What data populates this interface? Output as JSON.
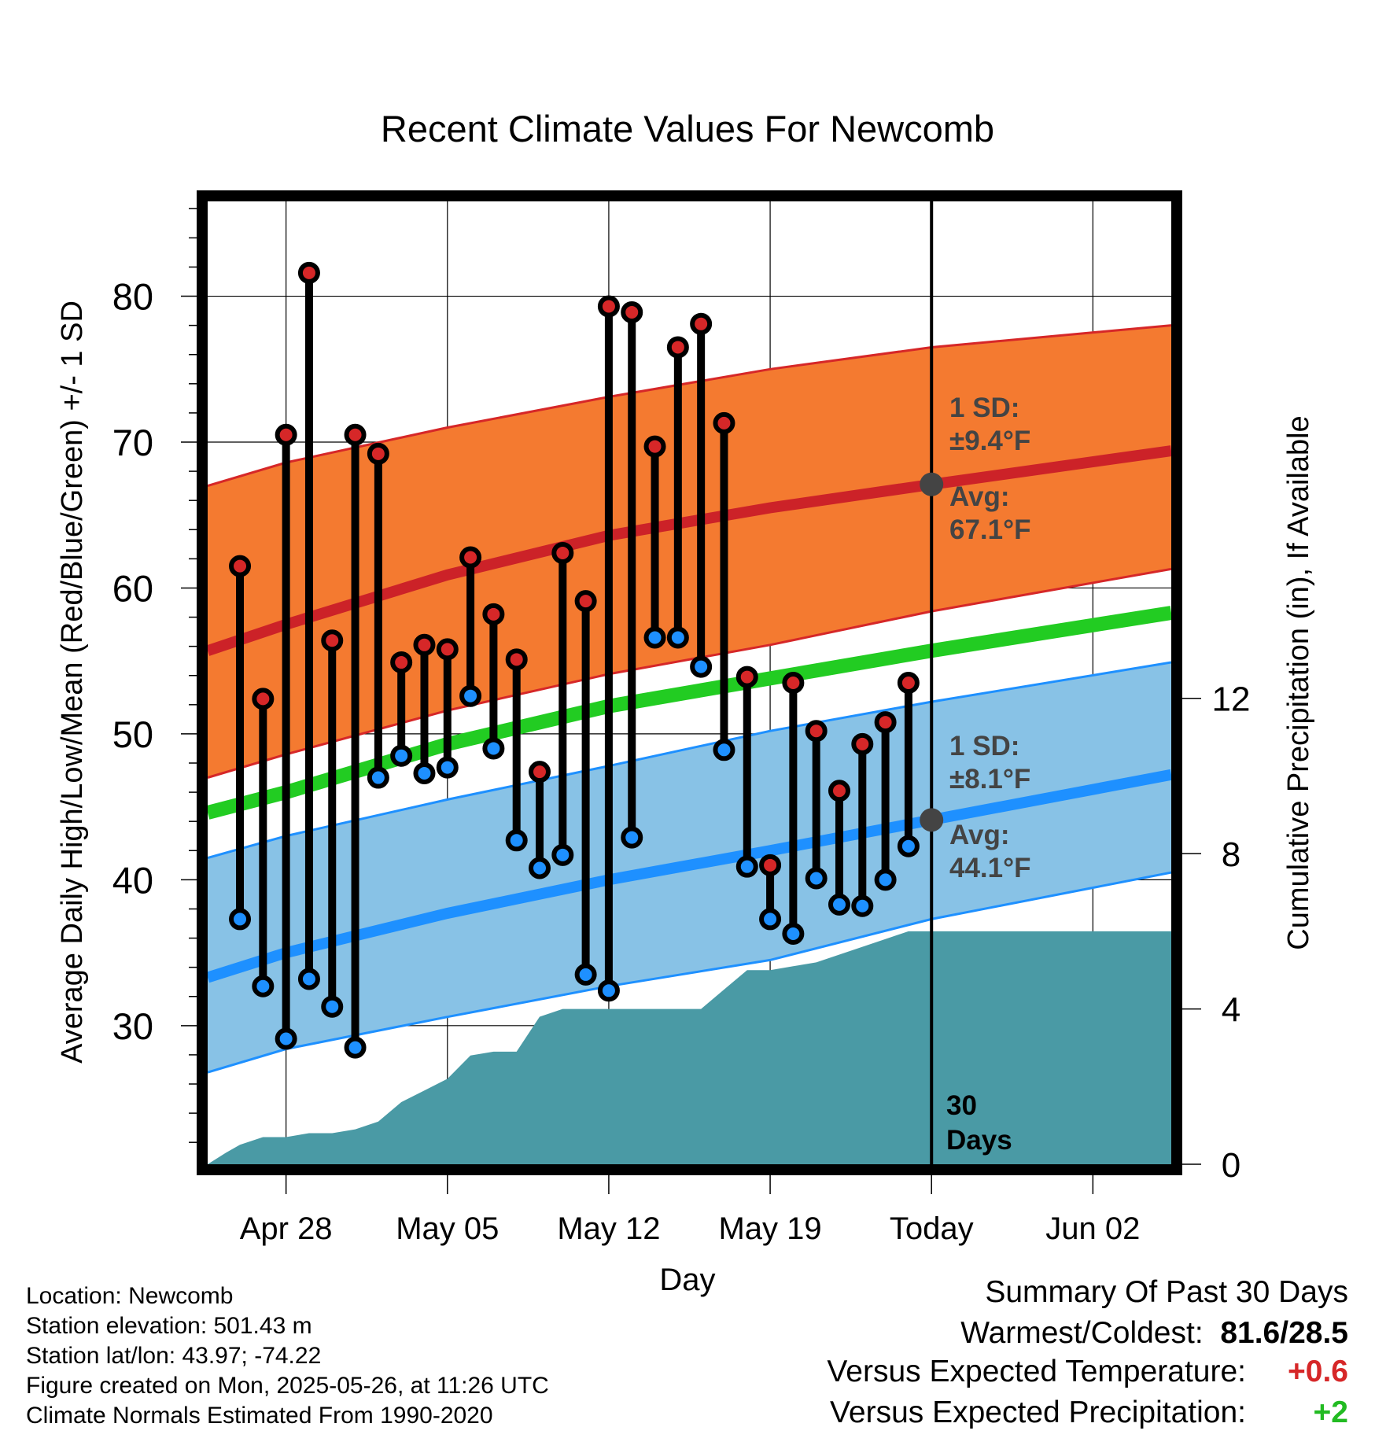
{
  "title": "Recent Climate Values For Newcomb",
  "chart_data": {
    "type": "line",
    "title": "Recent Climate Values For Newcomb",
    "xlabel": "Day",
    "ylabel": "Average Daily High/Low/Mean (Red/Blue/Green) +/- 1 SD",
    "ylabel_right": "Cumulative Precipitation (in), If Available",
    "ylim": [
      20.5,
      86.5
    ],
    "ylim_right": [
      0,
      24.8
    ],
    "xlim": [
      -3.4,
      38.4
    ],
    "x_ticks": [
      {
        "x": 0,
        "label": "Apr 28"
      },
      {
        "x": 7,
        "label": "May 05"
      },
      {
        "x": 14,
        "label": "May 12"
      },
      {
        "x": 21,
        "label": "May 19"
      },
      {
        "x": 28,
        "label": "Today"
      },
      {
        "x": 35,
        "label": "Jun 02"
      }
    ],
    "y_ticks": [
      30,
      40,
      50,
      60,
      70,
      80
    ],
    "y_ticks_right": [
      0,
      4,
      8,
      12
    ],
    "grid": true,
    "series": [
      {
        "name": "High",
        "color": "#d62728",
        "x": [
          -2,
          -1,
          0,
          1,
          2,
          3,
          4,
          5,
          6,
          7,
          8,
          9,
          10,
          11,
          12,
          13,
          14,
          15,
          16,
          17,
          18,
          19,
          20,
          21,
          22,
          23,
          24,
          25,
          26,
          27
        ],
        "values": [
          61.5,
          52.4,
          70.5,
          81.6,
          56.4,
          70.5,
          69.2,
          54.9,
          56.1,
          55.8,
          62.1,
          58.2,
          55.1,
          47.4,
          62.4,
          59.1,
          79.3,
          78.9,
          69.7,
          76.5,
          78.1,
          71.3,
          53.9,
          41.0,
          53.5,
          50.2,
          46.1,
          49.3,
          50.8,
          53.5
        ]
      },
      {
        "name": "Low",
        "color": "#1e90ff",
        "x": [
          -2,
          -1,
          0,
          1,
          2,
          3,
          4,
          5,
          6,
          7,
          8,
          9,
          10,
          11,
          12,
          13,
          14,
          15,
          16,
          17,
          18,
          19,
          20,
          21,
          22,
          23,
          24,
          25,
          26,
          27
        ],
        "values": [
          37.3,
          32.7,
          29.1,
          33.2,
          31.3,
          28.5,
          47.0,
          48.5,
          47.3,
          47.7,
          52.6,
          49.0,
          42.7,
          40.8,
          41.7,
          33.5,
          32.4,
          42.9,
          56.6,
          56.6,
          54.6,
          48.9,
          40.9,
          37.3,
          36.3,
          40.1,
          38.3,
          38.2,
          40.0,
          42.3
        ]
      },
      {
        "name": "Normal High Avg",
        "color": "#cc2228",
        "x": [
          -3.4,
          0,
          7,
          14,
          21,
          28,
          38.4
        ],
        "values": [
          55.7,
          57.5,
          60.9,
          63.6,
          65.5,
          67.1,
          69.4
        ]
      },
      {
        "name": "Normal High +1 SD",
        "color": "#d62728",
        "x": [
          -3.4,
          0,
          7,
          14,
          21,
          28,
          38.4
        ],
        "values": [
          67.0,
          68.6,
          71.0,
          73.1,
          75.0,
          76.5,
          78.0
        ]
      },
      {
        "name": "Normal High -1 SD",
        "color": "#d62728",
        "x": [
          -3.4,
          0,
          7,
          14,
          21,
          28,
          38.4
        ],
        "values": [
          47.0,
          48.6,
          51.6,
          54.1,
          56.1,
          58.4,
          61.3
        ]
      },
      {
        "name": "Normal Mean",
        "color": "#22cc22",
        "x": [
          -3.4,
          0,
          7,
          14,
          21,
          28,
          38.4
        ],
        "values": [
          44.6,
          46.0,
          49.3,
          51.9,
          53.8,
          55.7,
          58.3
        ]
      },
      {
        "name": "Normal Low Avg",
        "color": "#1e90ff",
        "x": [
          -3.4,
          0,
          7,
          14,
          21,
          28,
          38.4
        ],
        "values": [
          33.3,
          35.0,
          37.7,
          40.0,
          42.0,
          44.1,
          47.2
        ]
      },
      {
        "name": "Normal Low +1 SD",
        "color": "#1e90ff",
        "x": [
          -3.4,
          0,
          7,
          14,
          21,
          28,
          38.4
        ],
        "values": [
          41.5,
          43.0,
          45.5,
          47.8,
          50.2,
          52.2,
          54.9
        ]
      },
      {
        "name": "Normal Low -1 SD",
        "color": "#1e90ff",
        "x": [
          -3.4,
          0,
          7,
          14,
          21,
          28,
          38.4
        ],
        "values": [
          26.8,
          28.4,
          30.6,
          32.7,
          34.5,
          37.3,
          40.5
        ]
      },
      {
        "name": "Cumulative Precipitation",
        "color": "#4a9aa5",
        "axis": "right",
        "x": [
          -3.4,
          -2.6,
          -2,
          -1,
          0,
          1,
          2,
          3,
          4,
          5,
          6,
          7,
          8,
          9,
          10,
          11,
          12,
          13,
          14,
          15,
          16,
          17,
          18,
          19,
          20,
          21,
          22,
          23,
          24,
          25,
          26,
          27,
          28,
          38.4
        ],
        "values": [
          0,
          0.3,
          0.5,
          0.7,
          0.7,
          0.8,
          0.8,
          0.9,
          1.1,
          1.6,
          1.9,
          2.2,
          2.8,
          2.9,
          2.9,
          3.8,
          4.0,
          4.0,
          4.0,
          4.0,
          4.0,
          4.0,
          4.0,
          4.5,
          5.0,
          5.0,
          5.1,
          5.2,
          5.4,
          5.6,
          5.8,
          6.0,
          6.0,
          6.0
        ]
      }
    ],
    "annotations": {
      "high_sd_label": "1 SD:",
      "high_sd_value": "±9.4°F",
      "high_avg_label": "Avg:",
      "high_avg_value": "67.1°F",
      "low_sd_label": "1 SD:",
      "low_sd_value": "±8.1°F",
      "low_avg_label": "Avg:",
      "low_avg_value": "44.1°F",
      "days_number": "30",
      "days_word": "Days",
      "today_x": 28
    }
  },
  "info": {
    "location": "Location: Newcomb",
    "elevation": "Station elevation: 501.43 m",
    "latlon": "Station lat/lon: 43.97; -74.22",
    "created": "Figure created on Mon, 2025-05-26, at 11:26 UTC",
    "normals": "Climate Normals Estimated From 1990-2020"
  },
  "summary": {
    "heading": "Summary Of Past 30 Days",
    "warmest_coldest_label": "Warmest/Coldest:",
    "warmest_coldest_value": "81.6/28.5",
    "temp_label": "Versus Expected Temperature:",
    "temp_value": "+0.6",
    "temp_color": "#d62728",
    "precip_label": "Versus Expected Precipitation:",
    "precip_value": "+2",
    "precip_color": "#22bb22"
  }
}
